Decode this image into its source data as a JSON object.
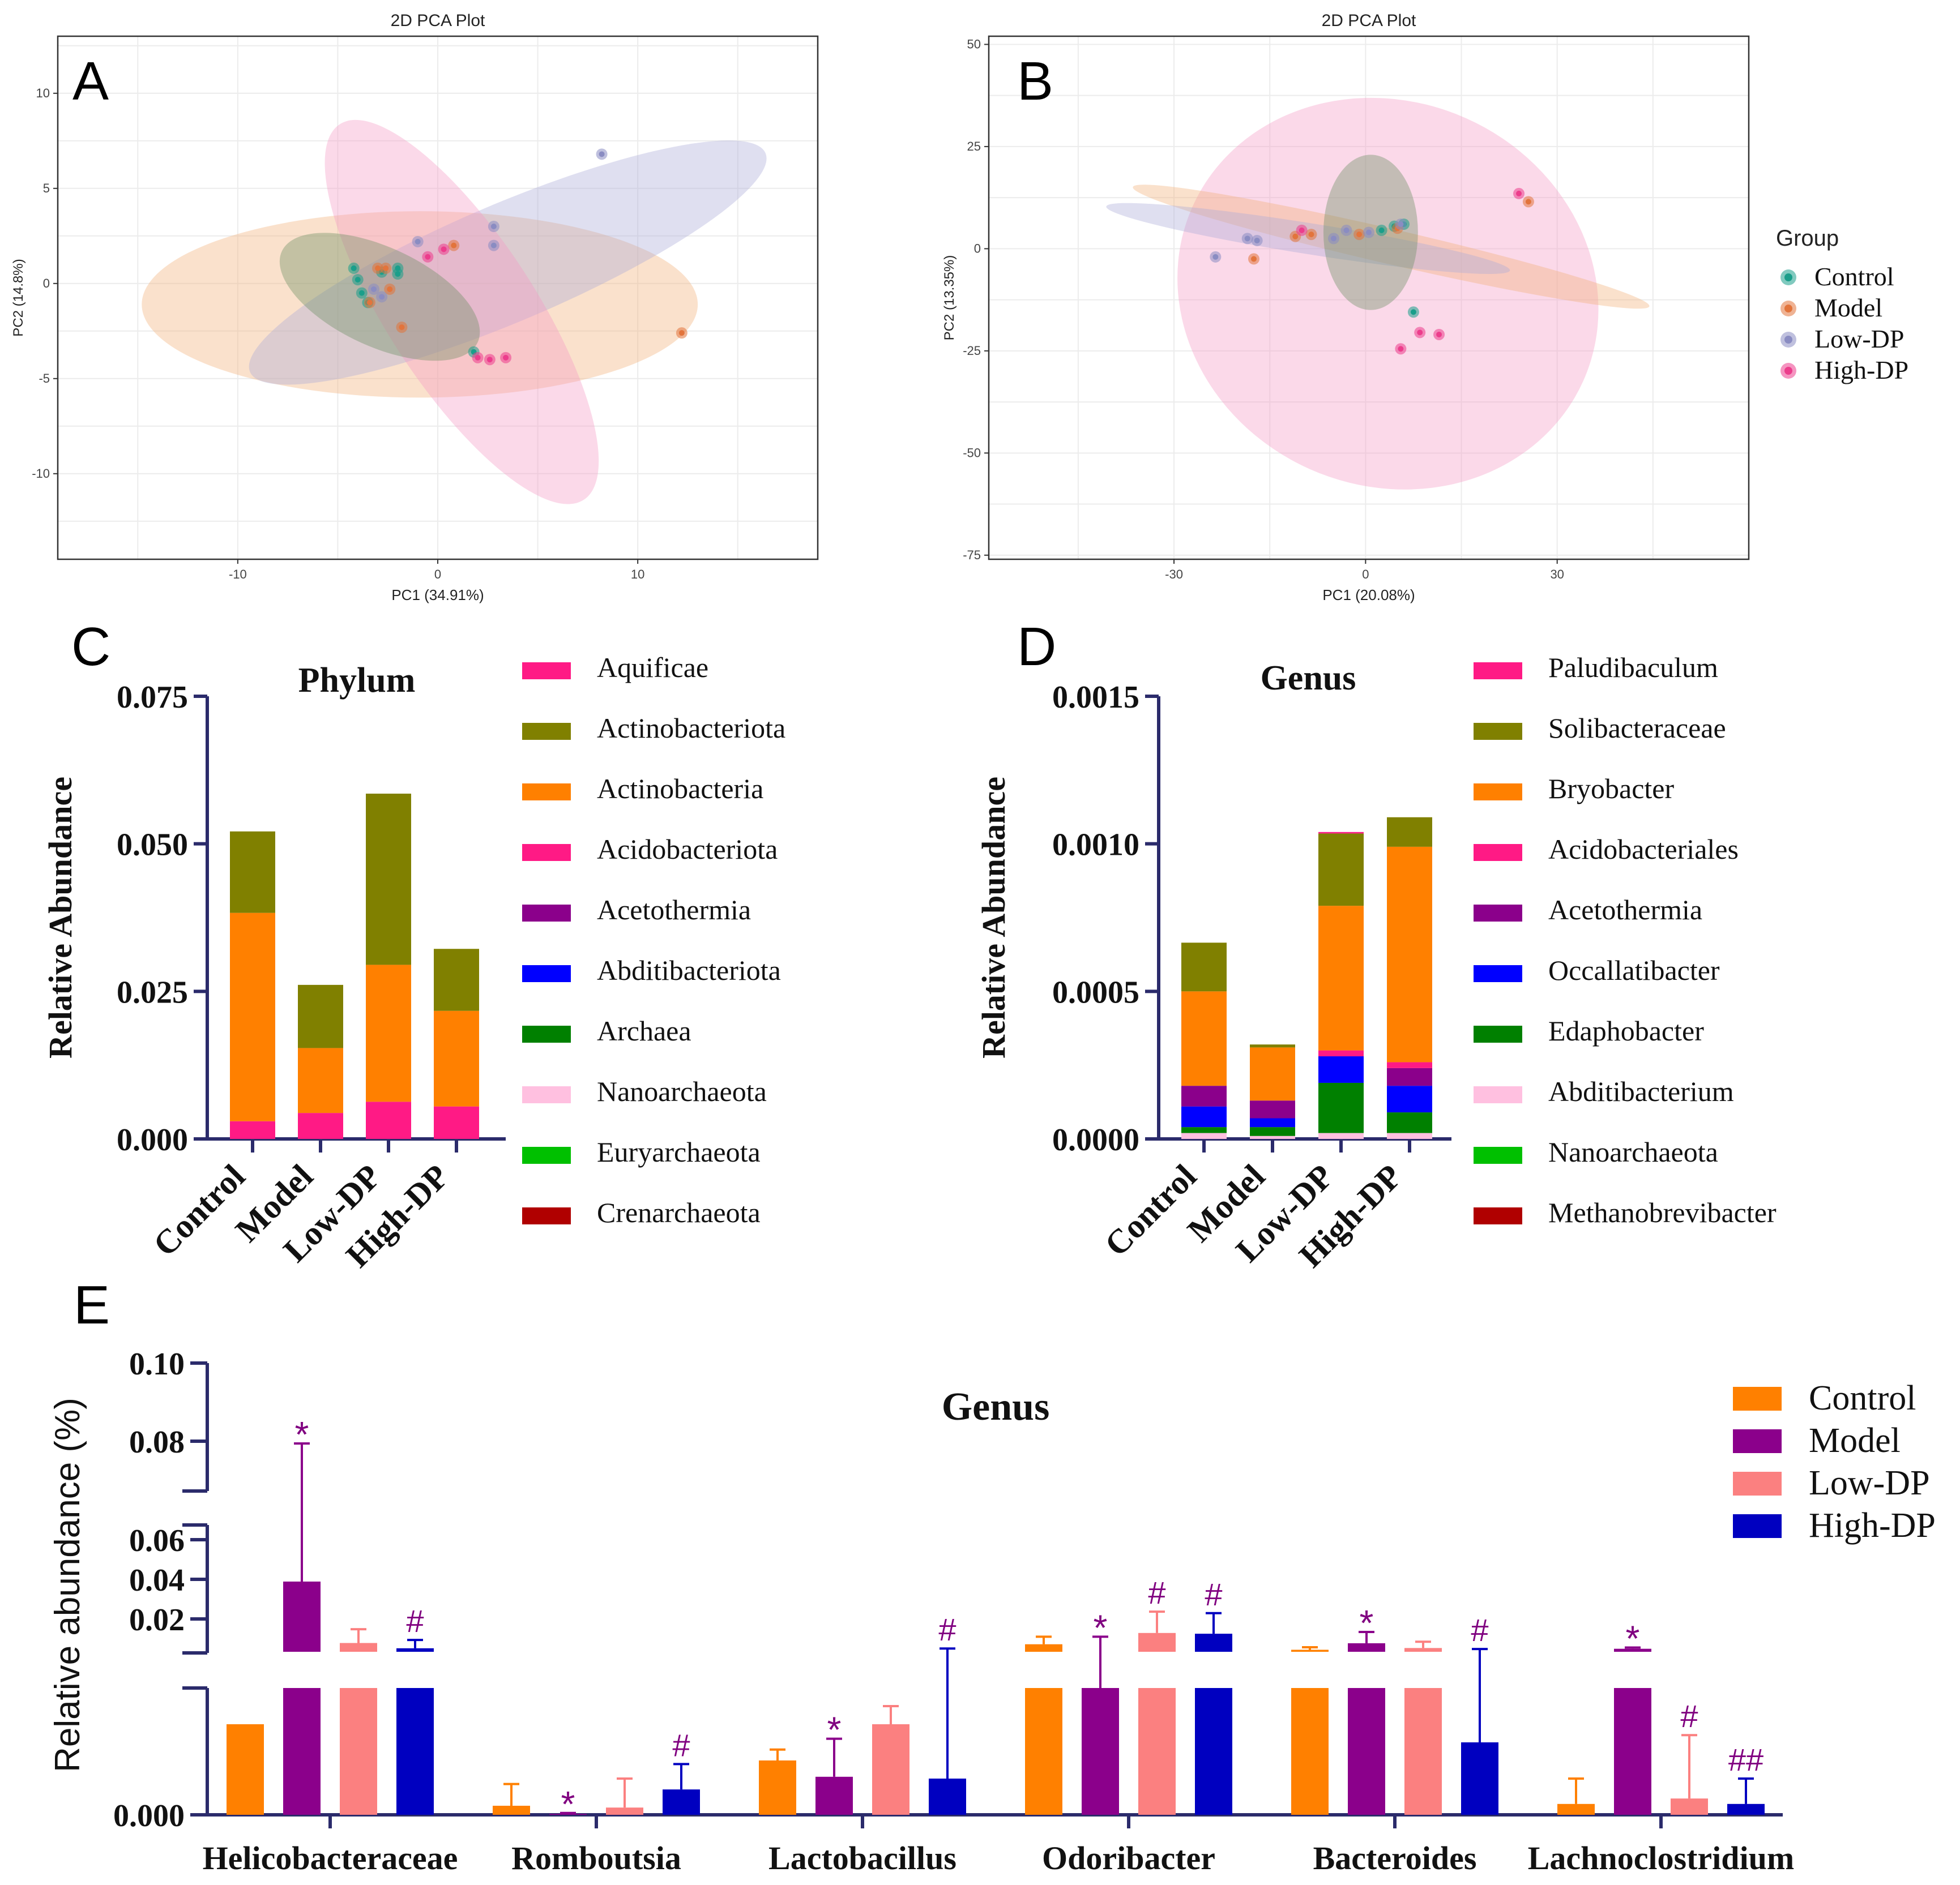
{
  "chart_data": [
    {
      "panel": "A",
      "type": "scatter",
      "title": "2D PCA Plot",
      "xlabel": "PC1 (34.91%)",
      "ylabel": "PC2 (14.8%)",
      "xlim": [
        -19,
        19
      ],
      "ylim": [
        -14.5,
        13
      ],
      "xticks": [
        -10,
        0,
        10
      ],
      "xtick_labels": [
        "-10",
        "0",
        "10"
      ],
      "yticks": [
        10,
        5,
        0,
        -5,
        -10
      ],
      "ytick_labels": [
        "10",
        "5",
        "0",
        "-5",
        "-10"
      ],
      "series": [
        {
          "name": "Control",
          "points": [
            [
              -4.2,
              0.8
            ],
            [
              -4.0,
              0.2
            ],
            [
              -3.8,
              -0.5
            ],
            [
              -3.5,
              -1.0
            ],
            [
              -2.8,
              0.6
            ],
            [
              -2.0,
              0.8
            ],
            [
              -2.0,
              0.5
            ],
            [
              1.8,
              -3.6
            ]
          ]
        },
        {
          "name": "Model",
          "points": [
            [
              -3.4,
              -1.0
            ],
            [
              -3.0,
              0.8
            ],
            [
              -2.6,
              0.8
            ],
            [
              -2.4,
              -0.3
            ],
            [
              -1.8,
              -2.3
            ],
            [
              0.8,
              2.0
            ],
            [
              12.2,
              -2.6
            ]
          ]
        },
        {
          "name": "Low-DP",
          "points": [
            [
              -3.2,
              -0.3
            ],
            [
              -2.8,
              -0.7
            ],
            [
              -1.0,
              2.2
            ],
            [
              2.8,
              2.0
            ],
            [
              2.8,
              3.0
            ],
            [
              8.2,
              6.8
            ]
          ]
        },
        {
          "name": "High-DP",
          "points": [
            [
              -0.5,
              1.4
            ],
            [
              0.3,
              1.8
            ],
            [
              2.0,
              -3.9
            ],
            [
              2.6,
              -4.0
            ],
            [
              3.4,
              -3.9
            ]
          ]
        }
      ],
      "ellipses": [
        {
          "group": "Model",
          "center": [
            -0.9,
            -1.1
          ],
          "semi_axes": [
            13.9,
            4.9
          ],
          "rotation_deg": 0
        },
        {
          "group": "Low-DP",
          "center": [
            3.5,
            1.1
          ],
          "semi_axes": [
            14.0,
            3.1
          ],
          "rotation_deg": 23
        },
        {
          "group": "High-DP",
          "center": [
            1.2,
            -1.5
          ],
          "semi_axes": [
            11.2,
            3.9
          ],
          "rotation_deg": -57
        },
        {
          "group": "Control",
          "center": [
            -2.9,
            -0.7
          ],
          "semi_axes": [
            5.4,
            2.6
          ],
          "rotation_deg": -25
        }
      ]
    },
    {
      "panel": "B",
      "type": "scatter",
      "title": "2D PCA Plot",
      "xlabel": "PC1 (20.08%)",
      "ylabel": "PC2 (13.35%)",
      "xlim": [
        -59,
        60
      ],
      "ylim": [
        -76,
        52
      ],
      "xticks": [
        -30,
        0,
        30
      ],
      "xtick_labels": [
        "-30",
        "0",
        "30"
      ],
      "yticks": [
        50,
        25,
        0,
        -25,
        -50,
        -75
      ],
      "ytick_labels": [
        "50",
        "25",
        "0",
        "-25",
        "-50",
        "-75"
      ],
      "series": [
        {
          "name": "Control",
          "points": [
            [
              2.5,
              4.5
            ],
            [
              4.5,
              5.5
            ],
            [
              6.0,
              6.0
            ],
            [
              7.5,
              -15.5
            ]
          ]
        },
        {
          "name": "Model",
          "points": [
            [
              -17.5,
              -2.5
            ],
            [
              -11.0,
              3.0
            ],
            [
              -8.5,
              3.5
            ],
            [
              -1.0,
              3.5
            ],
            [
              5.0,
              5.0
            ],
            [
              25.5,
              11.5
            ]
          ]
        },
        {
          "name": "Low-DP",
          "points": [
            [
              -23.5,
              -2.0
            ],
            [
              -18.5,
              2.5
            ],
            [
              -17.0,
              2.0
            ],
            [
              -5.0,
              2.5
            ],
            [
              -3.0,
              4.5
            ],
            [
              0.5,
              4.0
            ],
            [
              5.5,
              6.0
            ]
          ]
        },
        {
          "name": "High-DP",
          "points": [
            [
              -10.0,
              4.5
            ],
            [
              5.5,
              -24.5
            ],
            [
              8.5,
              -20.5
            ],
            [
              11.5,
              -21.0
            ],
            [
              24.0,
              13.5
            ]
          ]
        }
      ],
      "ellipses": [
        {
          "group": "High-DP",
          "center": [
            3.5,
            -11
          ],
          "semi_axes": [
            33.5,
            47
          ],
          "rotation_deg": -24
        },
        {
          "group": "Model",
          "center": [
            4,
            0.5
          ],
          "semi_axes": [
            41.5,
            4.3
          ],
          "rotation_deg": -13
        },
        {
          "group": "Low-DP",
          "center": [
            -9,
            2.5
          ],
          "semi_axes": [
            32,
            3.8
          ],
          "rotation_deg": -9
        },
        {
          "group": "Control",
          "center": [
            0.8,
            4
          ],
          "semi_axes": [
            7.4,
            19
          ],
          "rotation_deg": 0
        }
      ]
    },
    {
      "panel": "C",
      "type": "bar",
      "stacked": true,
      "title": "Phylum",
      "xlabel": "",
      "ylabel": "Relative Abundance",
      "categories": [
        "Control",
        "Model",
        "Low-DP",
        "High-DP"
      ],
      "ylim": [
        0,
        0.075
      ],
      "yticks": [
        0,
        0.025,
        0.05,
        0.075
      ],
      "ytick_labels": [
        "0.000",
        "0.025",
        "0.050",
        "0.075"
      ],
      "series": [
        {
          "name": "Aquificae",
          "values": [
            0,
            0,
            0,
            0
          ]
        },
        {
          "name": "Actinobacteriota",
          "values": [
            0.0138,
            0.0107,
            0.029,
            0.0105
          ]
        },
        {
          "name": "Actinobacteria",
          "values": [
            0.0353,
            0.011,
            0.0232,
            0.0162
          ]
        },
        {
          "name": "Acidobacteriota",
          "values": [
            0.003,
            0.0044,
            0.0063,
            0.0055
          ]
        },
        {
          "name": "Acetothermia",
          "values": [
            0,
            0,
            0,
            0
          ]
        },
        {
          "name": "Abditibacteriota",
          "values": [
            0,
            0,
            0,
            0
          ]
        },
        {
          "name": "Archaea",
          "values": [
            0,
            0,
            0,
            0
          ]
        },
        {
          "name": "Nanoarchaeota",
          "values": [
            0,
            0,
            0,
            0
          ]
        },
        {
          "name": "Euryarchaeota",
          "values": [
            0,
            0,
            0,
            0
          ]
        },
        {
          "name": "Crenarchaeota",
          "values": [
            0,
            0,
            0,
            0
          ]
        }
      ]
    },
    {
      "panel": "D",
      "type": "bar",
      "stacked": true,
      "title": "Genus",
      "xlabel": "",
      "ylabel": "Relative Abundance",
      "categories": [
        "Control",
        "Model",
        "Low-DP",
        "High-DP"
      ],
      "ylim": [
        0,
        0.0015
      ],
      "yticks": [
        0,
        0.0005,
        0.001,
        0.0015
      ],
      "ytick_labels": [
        "0.0000",
        "0.0005",
        "0.0010",
        "0.0015"
      ],
      "series": [
        {
          "name": "Paludibaculum",
          "values": [
            0,
            0,
            5e-06,
            0
          ]
        },
        {
          "name": "Solibacteraceae",
          "values": [
            0.000165,
            1e-05,
            0.000245,
            0.0001
          ]
        },
        {
          "name": "Bryobacter",
          "values": [
            0.00032,
            0.00018,
            0.00049,
            0.00073
          ]
        },
        {
          "name": "Acidobacteriales",
          "values": [
            0,
            0,
            2e-05,
            2e-05
          ]
        },
        {
          "name": "Acetothermia",
          "values": [
            7e-05,
            6e-05,
            0,
            6e-05
          ]
        },
        {
          "name": "Occallatibacter",
          "values": [
            7e-05,
            3e-05,
            9e-05,
            9e-05
          ]
        },
        {
          "name": "Edaphobacter",
          "values": [
            2e-05,
            3e-05,
            0.00017,
            7e-05
          ]
        },
        {
          "name": "Abditibacterium",
          "values": [
            2e-05,
            1e-05,
            2e-05,
            2e-05
          ]
        },
        {
          "name": "Nanoarchaeota",
          "values": [
            0,
            0,
            0,
            0
          ]
        },
        {
          "name": "Methanobrevibacter",
          "values": [
            0,
            0,
            0,
            0
          ]
        }
      ]
    },
    {
      "panel": "E",
      "type": "bar",
      "title": "Genus",
      "xlabel": "",
      "ylabel": "Relative abundance (%)",
      "categories": [
        "Helicobacteraceae",
        "Romboutsia",
        "Lactobacillus",
        "Odoribacter",
        "Bacteroides",
        "Lachnoclostridium"
      ],
      "y_axis_broken": true,
      "ytick_labels": [
        "0.000",
        "0.02",
        "0.04",
        "0.06",
        "0.08",
        "0.10"
      ],
      "note": "broken y-axis; bottom segment unlabeled except 0.000, bars reaching the break are truncated",
      "series": [
        {
          "name": "Control",
          "values": [
            0.0005,
            5e-05,
            0.0003,
            0.003,
            0.0008,
            6e-05
          ],
          "errors": [
            0,
            0.00012,
            6e-05,
            0.003,
            0.001,
            0.00014
          ],
          "annotations": [
            "",
            "",
            "",
            "",
            "",
            ""
          ]
        },
        {
          "name": "Model",
          "values": [
            0.028,
            5e-06,
            0.00021,
            0.0007,
            0.0034,
            0.0012
          ],
          "errors": [
            0.05,
            5e-06,
            0.00021,
            0.0053,
            0.0045,
            0.0005
          ],
          "annotations": [
            "*",
            "*",
            "*",
            "*",
            "*",
            "*"
          ]
        },
        {
          "name": "Low-DP",
          "values": [
            0.0035,
            4e-05,
            0.0005,
            0.0075,
            0.0015,
            9e-05
          ],
          "errors": [
            0.0055,
            0.00016,
            0.0001,
            0.0085,
            0.0025,
            0.00035
          ],
          "annotations": [
            "",
            "",
            "",
            "#",
            "",
            "#"
          ]
        },
        {
          "name": "High-DP",
          "values": [
            0.0014,
            0.00014,
            0.0002,
            0.0072,
            0.0004,
            6e-05
          ],
          "errors": [
            0.0033,
            0.00014,
            0.0011,
            0.0082,
            0.0007,
            0.00014
          ],
          "annotations": [
            "#",
            "#",
            "#",
            "#",
            "#",
            "##"
          ]
        }
      ]
    }
  ],
  "pca_legend": {
    "title": "Group",
    "entries": [
      "Control",
      "Model",
      "Low-DP",
      "High-DP"
    ]
  },
  "panel_labels": [
    "A",
    "B",
    "C",
    "D",
    "E"
  ],
  "colors": {
    "pca": {
      "Control": "#1a9e8a",
      "Model": "#e2743c",
      "Low-DP": "#8a8cc2",
      "High-DP": "#ec3d8c"
    },
    "pca_ellipse": {
      "Control": "#6a8f62",
      "Model": "#f2b07a",
      "Low-DP": "#aaaad8",
      "High-DP": "#f49ac6"
    },
    "stack_C": [
      "#ff1a85",
      "#808000",
      "#ff8000",
      "#ff1a85",
      "#8b008b",
      "#0000ff",
      "#008000",
      "#ffc0e0",
      "#00c000",
      "#b00000"
    ],
    "stack_D": [
      "#ff1a85",
      "#808000",
      "#ff8000",
      "#ff1a85",
      "#8b008b",
      "#0000ff",
      "#008000",
      "#ffc0e0",
      "#00c000",
      "#b00000"
    ],
    "groups_E": {
      "Control": "#ff8000",
      "Model": "#8b008b",
      "Low-DP": "#fb8080",
      "High-DP": "#0000c0"
    },
    "axis": "#2b2b6b",
    "annotation": "#800080"
  }
}
